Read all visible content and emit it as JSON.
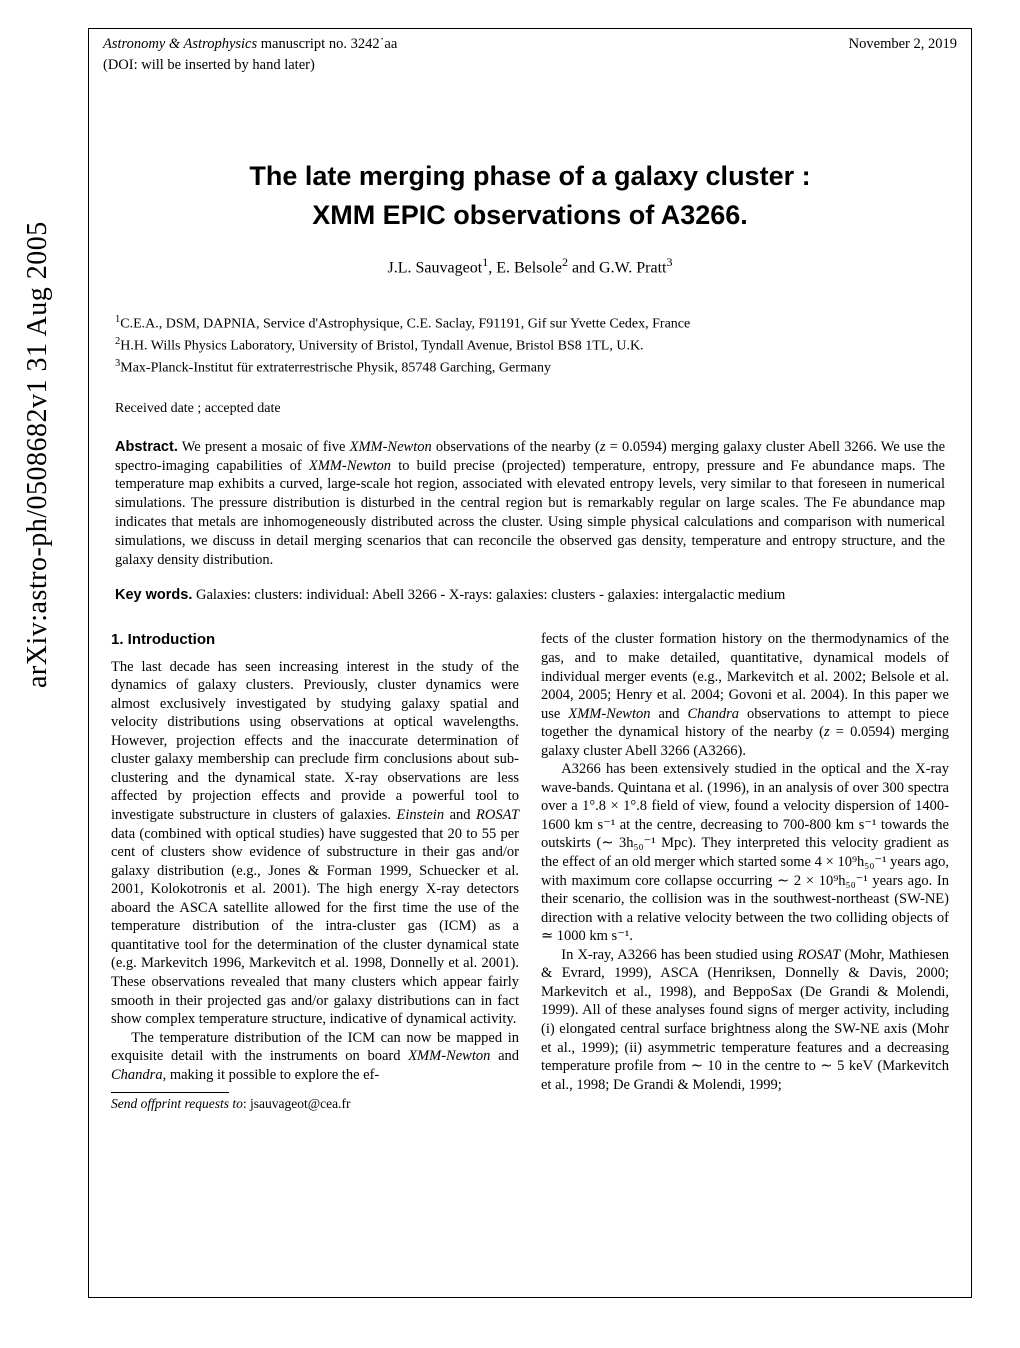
{
  "arxiv_stamp": "arXiv:astro-ph/0508682v1  31 Aug 2005",
  "running_head": {
    "journal": "Astronomy & Astrophysics",
    "ms": " manuscript no. 3242˙aa",
    "date": "November 2, 2019",
    "doi": "(DOI: will be inserted by hand later)"
  },
  "title_line1": "The late merging phase of a galaxy cluster :",
  "title_line2": "XMM EPIC observations of A3266.",
  "authors_html": "J.L. Sauvageot<sup>1</sup>, E. Belsole<sup>2</sup> and G.W. Pratt<sup>3</sup>",
  "affils": {
    "a1": "C.E.A., DSM, DAPNIA, Service d'Astrophysique, C.E. Saclay, F91191, Gif sur Yvette Cedex, France",
    "a2": "H.H. Wills Physics Laboratory, University of Bristol, Tyndall Avenue, Bristol BS8 1TL, U.K.",
    "a3": "Max-Planck-Institut für extraterrestrische Physik, 85748 Garching, Germany"
  },
  "dates": "Received date ; accepted date",
  "abstract_label": "Abstract.",
  "abstract_text": " We present a mosaic of five XMM-Newton observations of the nearby (z = 0.0594) merging galaxy cluster Abell 3266. We use the spectro-imaging capabilities of XMM-Newton to build precise (projected) temperature, entropy, pressure and Fe abundance maps. The temperature map exhibits a curved, large-scale hot region, associated with elevated entropy levels, very similar to that foreseen in numerical simulations. The pressure distribution is disturbed in the central region but is remarkably regular on large scales. The Fe abundance map indicates that metals are inhomogeneously distributed across the cluster. Using simple physical calculations and comparison with numerical simulations, we discuss in detail merging scenarios that can reconcile the observed gas density, temperature and entropy structure, and the galaxy density distribution.",
  "keywords_label": "Key words.",
  "keywords_text": " Galaxies: clusters: individual: Abell 3266 - X-rays: galaxies: clusters - galaxies: intergalactic medium",
  "section1_heading": "1. Introduction",
  "col1_p1": "The last decade has seen increasing interest in the study of the dynamics of galaxy clusters. Previously, cluster dynamics were almost exclusively investigated by studying galaxy spatial and velocity distributions using observations at optical wavelengths. However, projection effects and the inaccurate determination of cluster galaxy membership can preclude firm conclusions about sub-clustering and the dynamical state. X-ray observations are less affected by projection effects and provide a powerful tool to investigate substructure in clusters of galaxies. Einstein and ROSAT data (combined with optical studies) have suggested that 20 to 55 per cent of clusters show evidence of substructure in their gas and/or galaxy distribution (e.g., Jones & Forman 1999, Schuecker et al. 2001, Kolokotronis et al. 2001). The high energy X-ray detectors aboard the ASCA satellite allowed for the first time the use of the temperature distribution of the intra-cluster gas (ICM) as a quantitative tool for the determination of the cluster dynamical state (e.g. Markevitch 1996, Markevitch et al. 1998, Donnelly et al. 2001). These observations revealed that many clusters which appear fairly smooth in their projected gas and/or galaxy distributions can in fact show complex temperature structure, indicative of dynamical activity.",
  "col1_p2": "The temperature distribution of the ICM can now be mapped in exquisite detail with the instruments on board XMM-Newton and Chandra, making it possible to explore the ef-",
  "footnote_label": "Send offprint requests to",
  "footnote_text": ": jsauvageot@cea.fr",
  "col2_p1": "fects of the cluster formation history on the thermodynamics of the gas, and to make detailed, quantitative, dynamical models of individual merger events (e.g., Markevitch et al. 2002; Belsole et al. 2004, 2005; Henry et al. 2004; Govoni et al. 2004). In this paper we use XMM-Newton and Chandra observations to attempt to piece together the dynamical history of the nearby (z = 0.0594) merging galaxy cluster Abell 3266 (A3266).",
  "col2_p2": "A3266 has been extensively studied in the optical and the X-ray wave-bands. Quintana et al. (1996), in an analysis of over 300 spectra over a 1°.8 × 1°.8 field of view, found a velocity dispersion of 1400-1600 km s⁻¹ at the centre, decreasing to 700-800 km s⁻¹ towards the outskirts (∼ 3h₅₀⁻¹ Mpc). They interpreted this velocity gradient as the effect of an old merger which started some 4 × 10⁹h₅₀⁻¹ years ago, with maximum core collapse occurring ∼ 2 × 10⁹h₅₀⁻¹ years ago. In their scenario, the collision was in the southwest-northeast (SW-NE) direction with a relative velocity between the two colliding objects of ≃ 1000 km s⁻¹.",
  "col2_p3": "In X-ray, A3266 has been studied using ROSAT (Mohr, Mathiesen & Evrard, 1999), ASCA (Henriksen, Donnelly & Davis, 2000; Markevitch et al., 1998), and BeppoSax (De Grandi & Molendi, 1999). All of these analyses found signs of merger activity, including (i) elongated central surface brightness along the SW-NE axis (Mohr et al., 1999); (ii) asymmetric temperature features and a decreasing temperature profile from ∼ 10 in the centre to ∼ 5 keV (Markevitch et al., 1998; De Grandi & Molendi, 1999;"
}
